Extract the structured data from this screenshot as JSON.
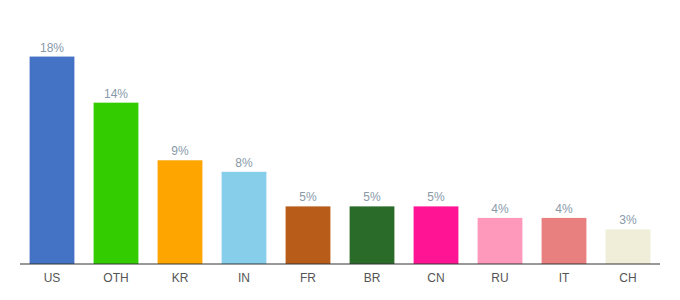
{
  "chart_data": {
    "type": "bar",
    "categories": [
      "US",
      "OTH",
      "KR",
      "IN",
      "FR",
      "BR",
      "CN",
      "RU",
      "IT",
      "CH"
    ],
    "values": [
      18,
      14,
      9,
      8,
      5,
      5,
      5,
      4,
      4,
      3
    ],
    "value_labels": [
      "18%",
      "14%",
      "9%",
      "8%",
      "5%",
      "5%",
      "5%",
      "4%",
      "4%",
      "3%"
    ],
    "colors": [
      "#4472C4",
      "#33CC00",
      "#FFA500",
      "#87CEEB",
      "#B85C1A",
      "#2A6B2A",
      "#FF1493",
      "#FF99BB",
      "#E88080",
      "#F0EDD8"
    ],
    "ylim": [
      0,
      21
    ],
    "data_labels": true,
    "tick_labels": "x",
    "grid": false
  }
}
